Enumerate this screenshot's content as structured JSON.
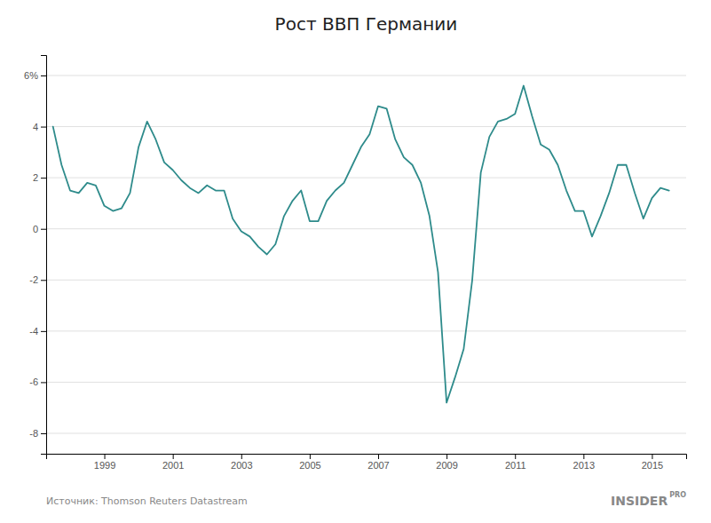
{
  "chart_data": {
    "type": "line",
    "title": "Рост ВВП Германии",
    "annotations": [
      "Источник: Thomson Reuters Datastream",
      "INSIDER",
      "PRO"
    ],
    "color": "#2e8b8b",
    "grid": true,
    "xlim": [
      1997.3,
      2016.0
    ],
    "xticks": [
      1999,
      2001,
      2003,
      2005,
      2007,
      2009,
      2011,
      2013,
      2015
    ],
    "ylim": [
      -8.8,
      6.8
    ],
    "yticks": [
      -8,
      -6,
      -4,
      -2,
      0,
      2,
      4,
      {
        "value": 6,
        "label": "6%"
      }
    ],
    "x": [
      1997.5,
      1997.75,
      1998.0,
      1998.25,
      1998.5,
      1998.75,
      1999.0,
      1999.25,
      1999.5,
      1999.75,
      2000.0,
      2000.25,
      2000.5,
      2000.75,
      2001.0,
      2001.25,
      2001.5,
      2001.75,
      2002.0,
      2002.25,
      2002.5,
      2002.75,
      2003.0,
      2003.25,
      2003.5,
      2003.75,
      2004.0,
      2004.25,
      2004.5,
      2004.75,
      2005.0,
      2005.25,
      2005.5,
      2005.75,
      2006.0,
      2006.25,
      2006.5,
      2006.75,
      2007.0,
      2007.25,
      2007.5,
      2007.75,
      2008.0,
      2008.25,
      2008.5,
      2008.75,
      2009.0,
      2009.25,
      2009.5,
      2009.75,
      2010.0,
      2010.25,
      2010.5,
      2010.75,
      2011.0,
      2011.25,
      2011.5,
      2011.75,
      2012.0,
      2012.25,
      2012.5,
      2012.75,
      2013.0,
      2013.25,
      2013.5,
      2013.75,
      2014.0,
      2014.25,
      2014.5,
      2014.75,
      2015.0,
      2015.25,
      2015.5
    ],
    "values": [
      4.0,
      2.5,
      1.5,
      1.4,
      1.8,
      1.7,
      0.9,
      0.7,
      0.8,
      1.4,
      3.2,
      4.2,
      3.5,
      2.6,
      2.3,
      1.9,
      1.6,
      1.4,
      1.7,
      1.5,
      1.5,
      0.4,
      -0.1,
      -0.3,
      -0.7,
      -1.0,
      -0.6,
      0.5,
      1.1,
      1.5,
      0.3,
      0.3,
      1.1,
      1.5,
      1.8,
      2.5,
      3.2,
      3.7,
      4.8,
      4.7,
      3.5,
      2.8,
      2.5,
      1.8,
      0.5,
      -1.7,
      -6.8,
      -5.8,
      -4.7,
      -2.0,
      2.2,
      3.6,
      4.2,
      4.3,
      4.5,
      5.6,
      4.4,
      3.3,
      3.1,
      2.5,
      1.5,
      0.7,
      0.7,
      -0.3,
      0.5,
      1.4,
      2.5,
      2.5,
      1.4,
      0.4,
      1.2,
      1.6,
      1.5
    ]
  }
}
